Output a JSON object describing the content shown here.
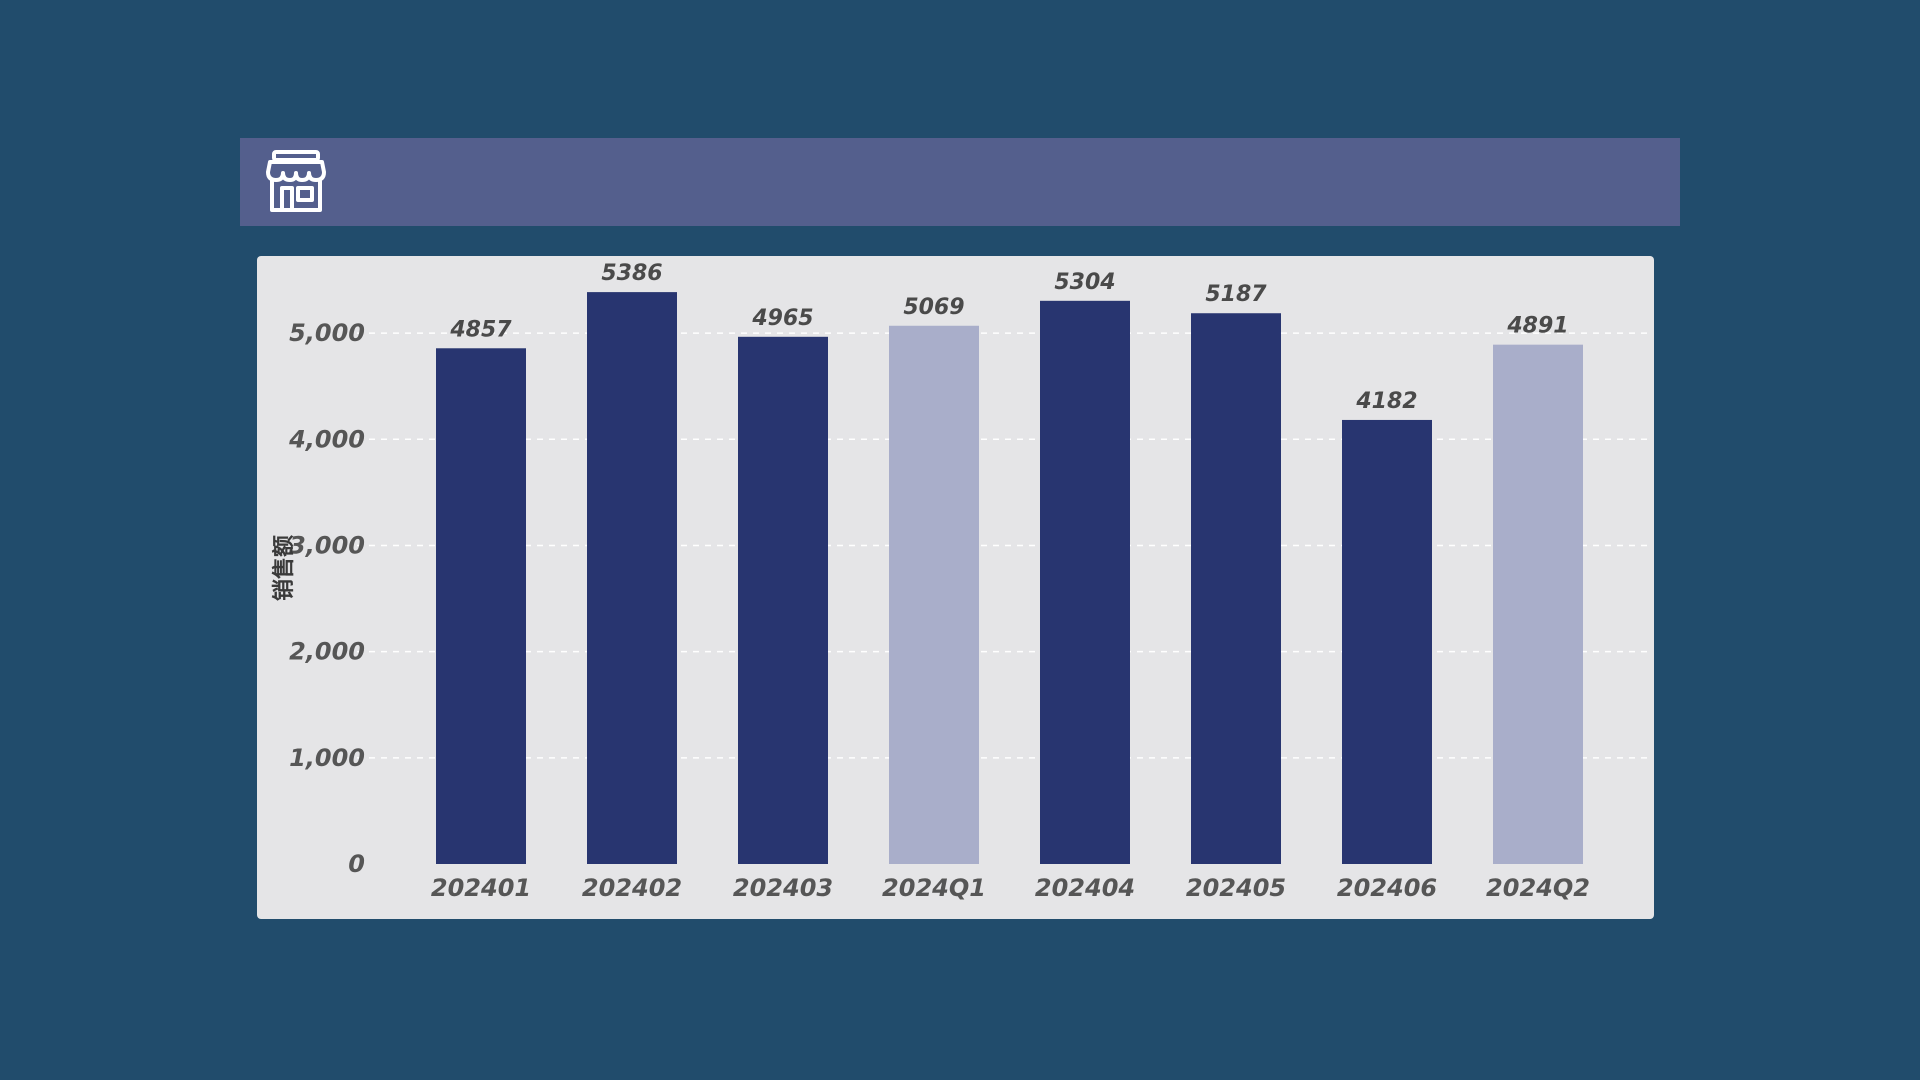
{
  "header": {
    "icon": "store-icon"
  },
  "colors": {
    "background": "#214c6c",
    "header": "#545f8d",
    "card": "#e5e5e7",
    "bar_month": "#283570",
    "bar_quarter": "#a9aeca"
  },
  "chart_data": {
    "type": "bar",
    "ylabel": "销售额",
    "xlabel": "",
    "ylim": [
      0,
      5500
    ],
    "yticks": [
      0,
      1000,
      2000,
      3000,
      4000,
      5000
    ],
    "ytick_labels": [
      "0",
      "1,000",
      "2,000",
      "3,000",
      "4,000",
      "5,000"
    ],
    "grid": true,
    "categories": [
      "202401",
      "202402",
      "202403",
      "2024Q1",
      "202404",
      "202405",
      "202406",
      "2024Q2"
    ],
    "values": [
      4857,
      5386,
      4965,
      5069,
      5304,
      5187,
      4182,
      4891
    ],
    "data_labels": [
      "4857",
      "5386",
      "4965",
      "5069",
      "5304",
      "5187",
      "4182",
      "4891"
    ],
    "highlight": [
      false,
      false,
      false,
      true,
      false,
      false,
      false,
      true
    ]
  }
}
